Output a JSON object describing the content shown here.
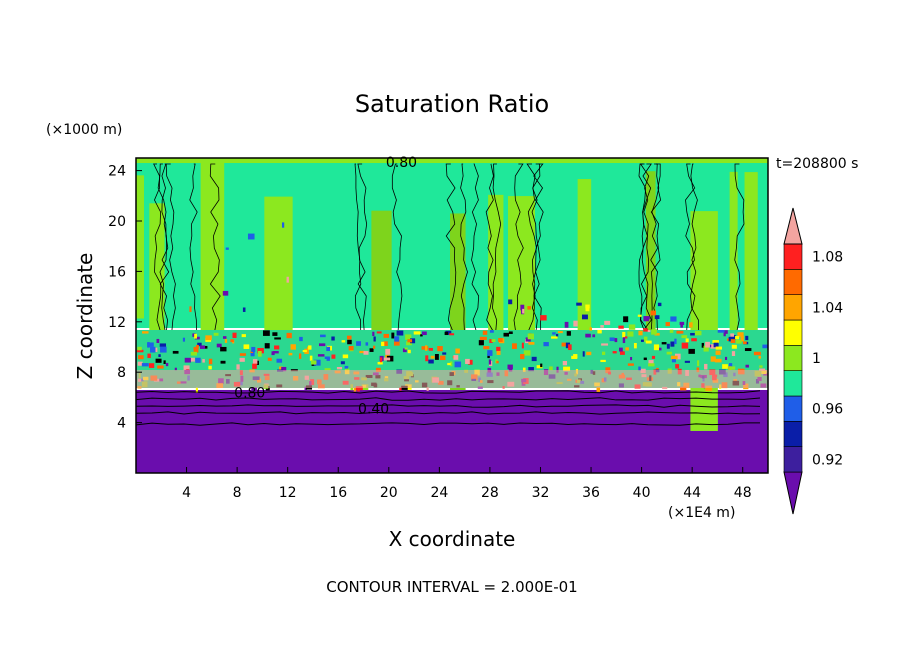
{
  "chart_data": {
    "type": "contour",
    "title": "Saturation Ratio",
    "xlabel": "X coordinate",
    "ylabel": "Z coordinate",
    "x_unit": "(×1E4 m)",
    "y_unit": "(×1000 m)",
    "time_label": "t=208800 s",
    "footer": "CONTOUR INTERVAL = 2.000E-01",
    "xlim": [
      0,
      50
    ],
    "ylim": [
      0,
      25
    ],
    "x_ticks": [
      4,
      8,
      12,
      16,
      20,
      24,
      28,
      32,
      36,
      40,
      44,
      48
    ],
    "y_ticks": [
      4,
      8,
      12,
      16,
      20,
      24
    ],
    "contour_labels": [
      {
        "text": "0.80",
        "x": 9.0,
        "y": 6.4
      },
      {
        "text": "0.40",
        "x": 18.8,
        "y": 5.1
      },
      {
        "text": "0.80",
        "x": 21.0,
        "y": 24.7
      }
    ],
    "colorbar": {
      "levels": [
        0.92,
        0.94,
        0.96,
        0.98,
        1.0,
        1.02,
        1.04,
        1.06,
        1.08,
        1.1
      ],
      "tick_labels": [
        "0.92",
        "0.96",
        "1",
        "1.04",
        "1.08"
      ],
      "colors": [
        "#6a0dad",
        "#3d1f9e",
        "#0a1ea8",
        "#1f5ee8",
        "#1fe89a",
        "#8ce81f",
        "#ffff00",
        "#ffa500",
        "#ff6a00",
        "#ff2020",
        "#f3a4a0"
      ]
    }
  }
}
